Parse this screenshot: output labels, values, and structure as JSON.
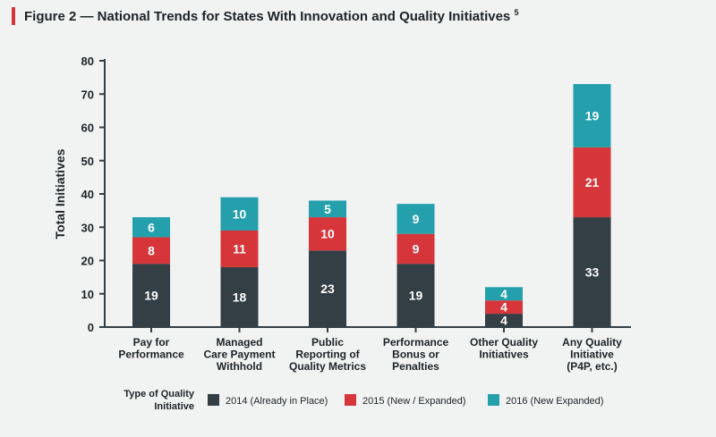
{
  "figure": {
    "title": "Figure 2 — National Trends for States With Innovation and Quality Initiatives",
    "footnote_marker": "5"
  },
  "colors": {
    "s2014": "#333e45",
    "s2015": "#d6353a",
    "s2016": "#24a0ad",
    "accent": "#d6353a"
  },
  "chart_data": {
    "type": "bar",
    "stacked": true,
    "ylabel": "Total Initiatives",
    "ylim": [
      0,
      80
    ],
    "yticks": [
      0,
      10,
      20,
      30,
      40,
      50,
      60,
      70,
      80
    ],
    "categories": [
      [
        "Pay for",
        "Performance"
      ],
      [
        "Managed",
        "Care Payment",
        "Withhold"
      ],
      [
        "Public",
        "Reporting of",
        "Quality Metrics"
      ],
      [
        "Performance",
        "Bonus or",
        "Penalties"
      ],
      [
        "Other Quality",
        "Initiatives"
      ],
      [
        "Any Quality",
        "Initiative",
        "(P4P, etc.)"
      ]
    ],
    "series": [
      {
        "name": "2014 (Already in Place)",
        "color_key": "s2014",
        "values": [
          19,
          18,
          23,
          19,
          4,
          33
        ]
      },
      {
        "name": "2015 (New / Expanded)",
        "color_key": "s2015",
        "values": [
          8,
          11,
          10,
          9,
          4,
          21
        ]
      },
      {
        "name": "2016 (New Expanded)",
        "color_key": "s2016",
        "values": [
          6,
          10,
          5,
          9,
          4,
          19
        ]
      }
    ],
    "legend": {
      "title": [
        "Type of Quality",
        "Initiative"
      ],
      "placement": "bottom"
    }
  }
}
